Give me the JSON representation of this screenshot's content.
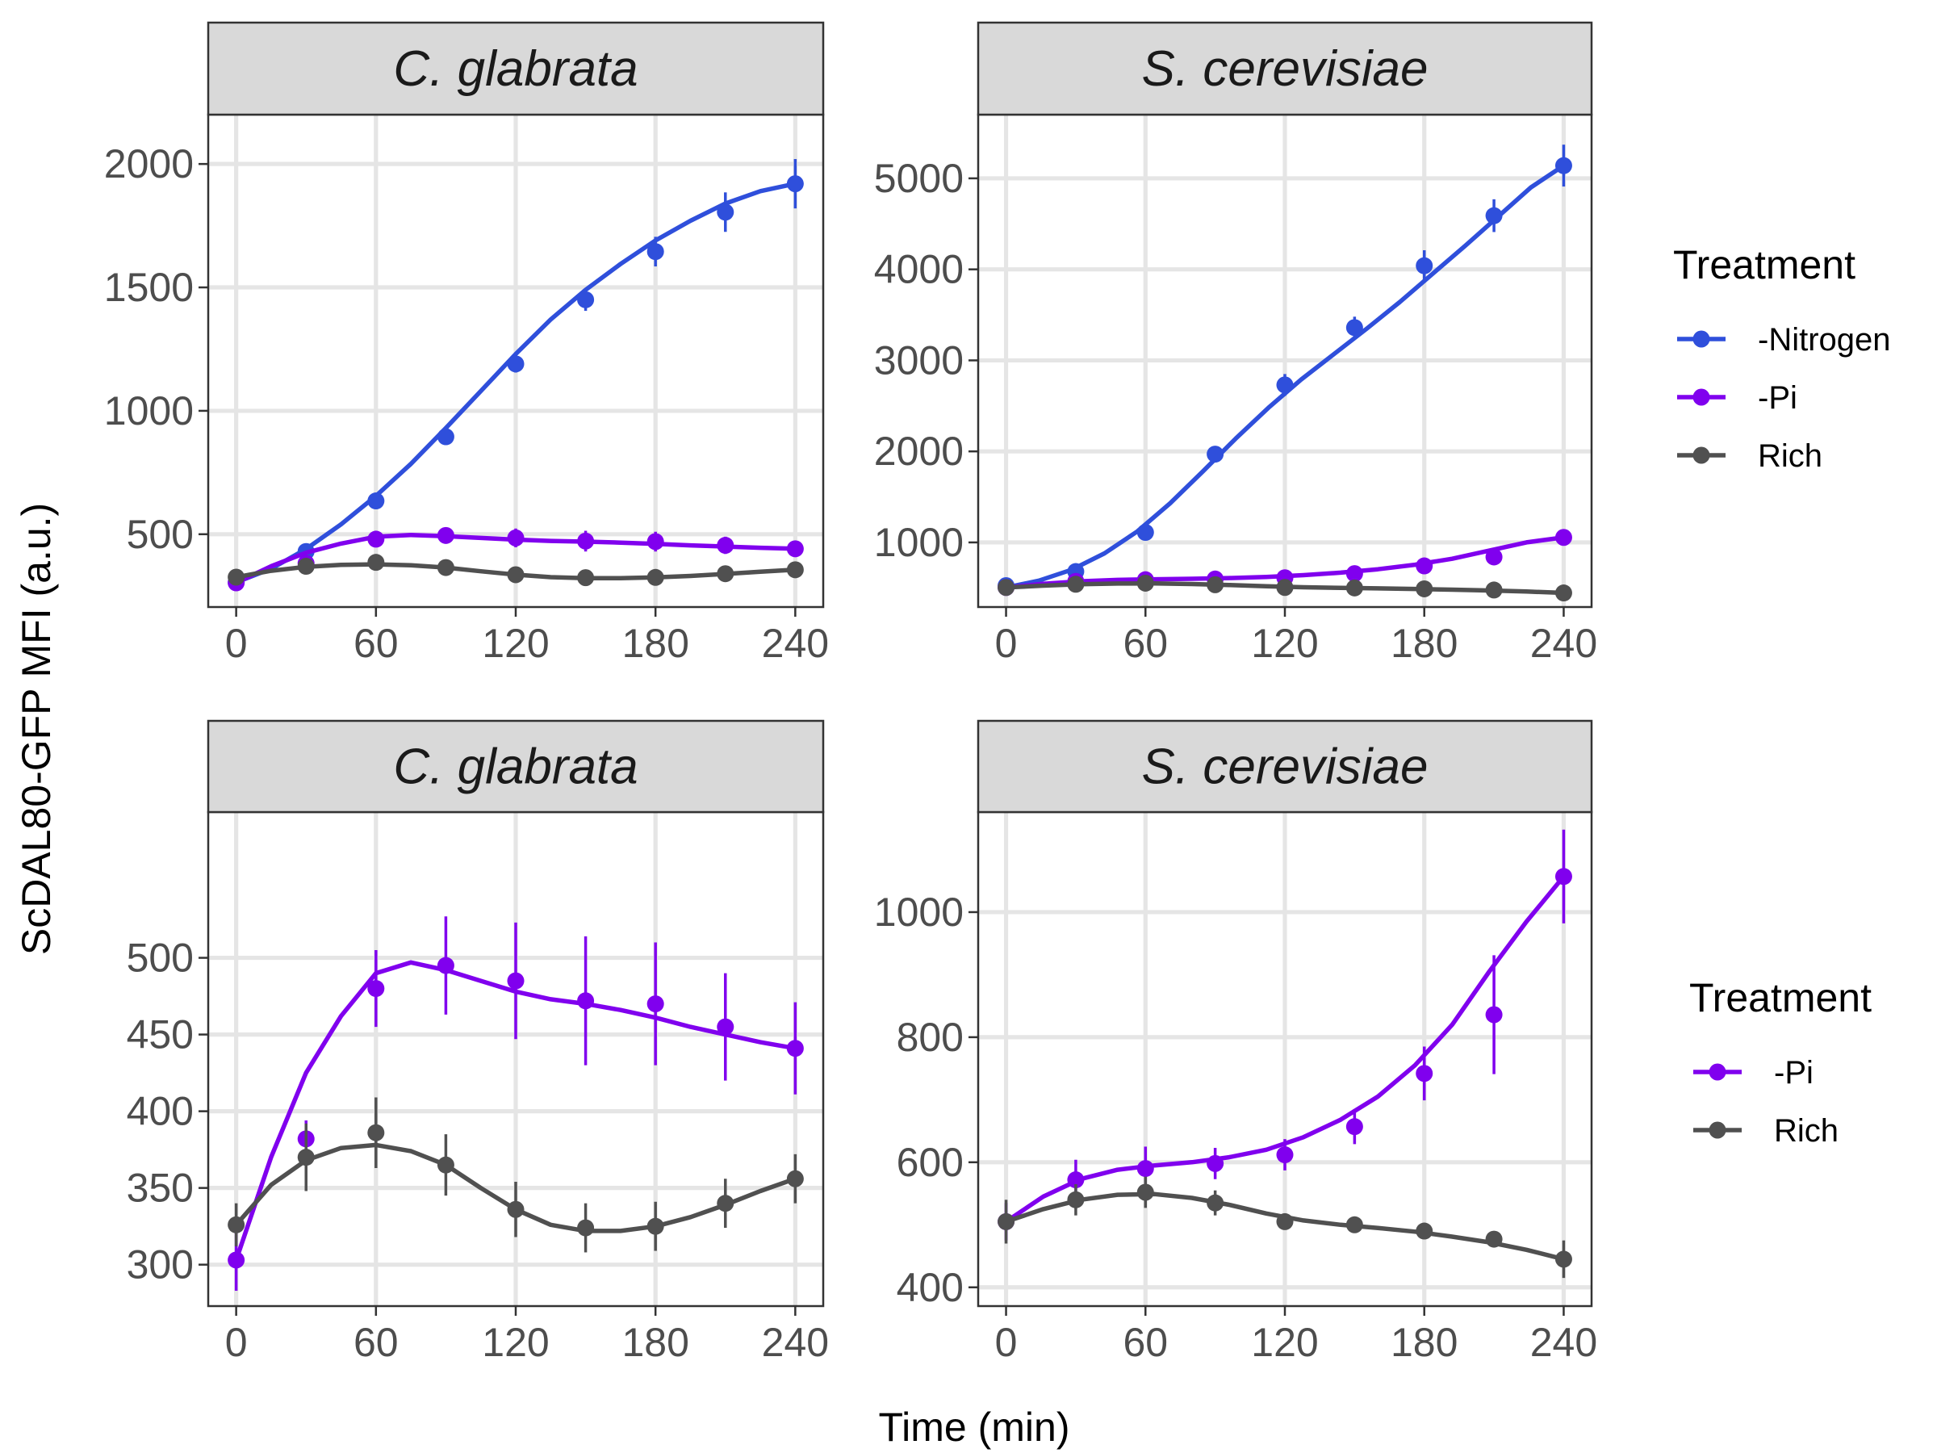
{
  "figure": {
    "xlabel": "Time (min)",
    "ylabel": "ScDAL80-GFP MFI (a.u.)"
  },
  "legends": [
    {
      "title": "Treatment",
      "entries": [
        {
          "name": "-Nitrogen",
          "color": "#2f4fdb"
        },
        {
          "name": "-Pi",
          "color": "#8000ee"
        },
        {
          "name": "Rich",
          "color": "#505050"
        }
      ]
    },
    {
      "title": "Treatment",
      "entries": [
        {
          "name": "-Pi",
          "color": "#8000ee"
        },
        {
          "name": "Rich",
          "color": "#505050"
        }
      ]
    }
  ],
  "chart_data": [
    {
      "type": "line",
      "strip": "C. glabrata",
      "xlim": [
        -12,
        252
      ],
      "ylim": [
        205,
        2200
      ],
      "xticks": [
        0,
        60,
        120,
        180,
        240
      ],
      "xtick_labels": [
        "0",
        "60",
        "120",
        "180",
        "240"
      ],
      "yticks": [
        500,
        1000,
        1500,
        2000
      ],
      "ytick_labels": [
        "500",
        "1000",
        "1500",
        "2000"
      ],
      "grid": true,
      "x": [
        0,
        30,
        60,
        90,
        120,
        150,
        180,
        210,
        240
      ],
      "series": [
        {
          "name": "-Nitrogen",
          "color": "#2f4fdb",
          "values": [
            305,
            430,
            635,
            895,
            1190,
            1450,
            1645,
            1805,
            1920
          ],
          "errors": [
            15,
            20,
            25,
            25,
            35,
            45,
            60,
            80,
            100
          ],
          "smooth": [
            305,
            360,
            440,
            540,
            655,
            785,
            930,
            1080,
            1230,
            1370,
            1490,
            1595,
            1690,
            1770,
            1840,
            1890,
            1920
          ]
        },
        {
          "name": "-Pi",
          "color": "#8000ee",
          "values": [
            303,
            382,
            480,
            495,
            485,
            472,
            470,
            455,
            441
          ],
          "errors": [
            20,
            12,
            25,
            32,
            38,
            42,
            40,
            35,
            30
          ],
          "smooth": [
            303,
            370,
            425,
            462,
            490,
            497,
            492,
            485,
            478,
            473,
            470,
            466,
            461,
            455,
            450,
            445,
            441
          ]
        },
        {
          "name": "Rich",
          "color": "#505050",
          "values": [
            326,
            370,
            386,
            365,
            336,
            324,
            325,
            340,
            356
          ],
          "errors": [
            14,
            15,
            23,
            20,
            18,
            16,
            16,
            16,
            16
          ],
          "smooth": [
            326,
            352,
            368,
            376,
            378,
            374,
            365,
            350,
            336,
            326,
            322,
            322,
            325,
            331,
            339,
            348,
            356
          ]
        }
      ]
    },
    {
      "type": "line",
      "strip": "S. cerevisiae",
      "xlim": [
        -12,
        252
      ],
      "ylim": [
        290,
        5700
      ],
      "xticks": [
        0,
        60,
        120,
        180,
        240
      ],
      "xtick_labels": [
        "0",
        "60",
        "120",
        "180",
        "240"
      ],
      "yticks": [
        1000,
        2000,
        3000,
        4000,
        5000
      ],
      "ytick_labels": [
        "1000",
        "2000",
        "3000",
        "4000",
        "5000"
      ],
      "grid": true,
      "x": [
        0,
        30,
        60,
        90,
        120,
        150,
        180,
        210,
        240
      ],
      "series": [
        {
          "name": "-Nitrogen",
          "color": "#2f4fdb",
          "values": [
            525,
            680,
            1110,
            1970,
            2730,
            3360,
            4040,
            4590,
            5140
          ],
          "errors": [
            20,
            40,
            60,
            80,
            120,
            120,
            170,
            180,
            230
          ],
          "smooth": [
            505,
            580,
            700,
            880,
            1120,
            1430,
            1780,
            2140,
            2480,
            2790,
            3070,
            3350,
            3640,
            3950,
            4260,
            4580,
            4900,
            5140
          ]
        },
        {
          "name": "-Pi",
          "color": "#8000ee",
          "values": [
            505,
            572,
            590,
            598,
            612,
            657,
            742,
            840,
            1055
          ],
          "errors": [
            30,
            30,
            30,
            25,
            25,
            25,
            40,
            80,
            80
          ],
          "smooth": [
            505,
            545,
            573,
            588,
            595,
            600,
            608,
            620,
            640,
            668,
            705,
            755,
            820,
            910,
            1000,
            1055
          ]
        },
        {
          "name": "Rich",
          "color": "#505050",
          "values": [
            505,
            540,
            552,
            535,
            505,
            500,
            490,
            477,
            445
          ],
          "errors": [
            35,
            25,
            25,
            25,
            15,
            15,
            15,
            15,
            30
          ],
          "smooth": [
            505,
            525,
            540,
            548,
            549,
            543,
            532,
            518,
            507,
            500,
            495,
            489,
            481,
            472,
            460,
            445
          ]
        }
      ]
    },
    {
      "type": "line",
      "strip": "C. glabrata",
      "xlim": [
        -12,
        252
      ],
      "ylim": [
        273,
        595
      ],
      "xticks": [
        0,
        60,
        120,
        180,
        240
      ],
      "xtick_labels": [
        "0",
        "60",
        "120",
        "180",
        "240"
      ],
      "yticks": [
        300,
        350,
        400,
        450,
        500
      ],
      "ytick_labels": [
        "300",
        "350",
        "400",
        "450",
        "500"
      ],
      "grid": true,
      "x": [
        0,
        30,
        60,
        90,
        120,
        150,
        180,
        210,
        240
      ],
      "series": [
        {
          "name": "-Pi",
          "color": "#8000ee",
          "values": [
            303,
            382,
            480,
            495,
            485,
            472,
            470,
            455,
            441
          ],
          "errors": [
            20,
            12,
            25,
            32,
            38,
            42,
            40,
            35,
            30
          ],
          "smooth": [
            303,
            370,
            425,
            462,
            490,
            497,
            492,
            485,
            478,
            473,
            470,
            466,
            461,
            455,
            450,
            445,
            441
          ]
        },
        {
          "name": "Rich",
          "color": "#505050",
          "values": [
            326,
            370,
            386,
            365,
            336,
            324,
            325,
            340,
            356
          ],
          "errors": [
            14,
            22,
            23,
            20,
            18,
            16,
            16,
            16,
            16
          ],
          "smooth": [
            326,
            352,
            368,
            376,
            378,
            374,
            365,
            350,
            336,
            326,
            322,
            322,
            325,
            331,
            339,
            348,
            356
          ]
        }
      ]
    },
    {
      "type": "line",
      "strip": "S. cerevisiae",
      "xlim": [
        -12,
        252
      ],
      "ylim": [
        370,
        1160
      ],
      "xticks": [
        0,
        60,
        120,
        180,
        240
      ],
      "xtick_labels": [
        "0",
        "60",
        "120",
        "180",
        "240"
      ],
      "yticks": [
        400,
        600,
        800,
        1000
      ],
      "ytick_labels": [
        "400",
        "600",
        "800",
        "1000"
      ],
      "grid": true,
      "x": [
        0,
        30,
        60,
        90,
        120,
        150,
        180,
        210,
        240
      ],
      "series": [
        {
          "name": "-Pi",
          "color": "#8000ee",
          "values": [
            505,
            572,
            590,
            598,
            612,
            657,
            742,
            836,
            1057
          ],
          "errors": [
            30,
            32,
            35,
            25,
            25,
            28,
            43,
            95,
            75
          ],
          "smooth": [
            505,
            545,
            573,
            588,
            595,
            600,
            608,
            620,
            640,
            668,
            705,
            755,
            820,
            905,
            985,
            1057
          ]
        },
        {
          "name": "Rich",
          "color": "#505050",
          "values": [
            505,
            540,
            552,
            535,
            505,
            500,
            490,
            477,
            445
          ],
          "errors": [
            35,
            25,
            25,
            20,
            12,
            12,
            12,
            12,
            30
          ],
          "smooth": [
            505,
            525,
            540,
            548,
            549,
            543,
            532,
            518,
            507,
            500,
            495,
            489,
            481,
            472,
            460,
            445
          ]
        }
      ]
    }
  ]
}
